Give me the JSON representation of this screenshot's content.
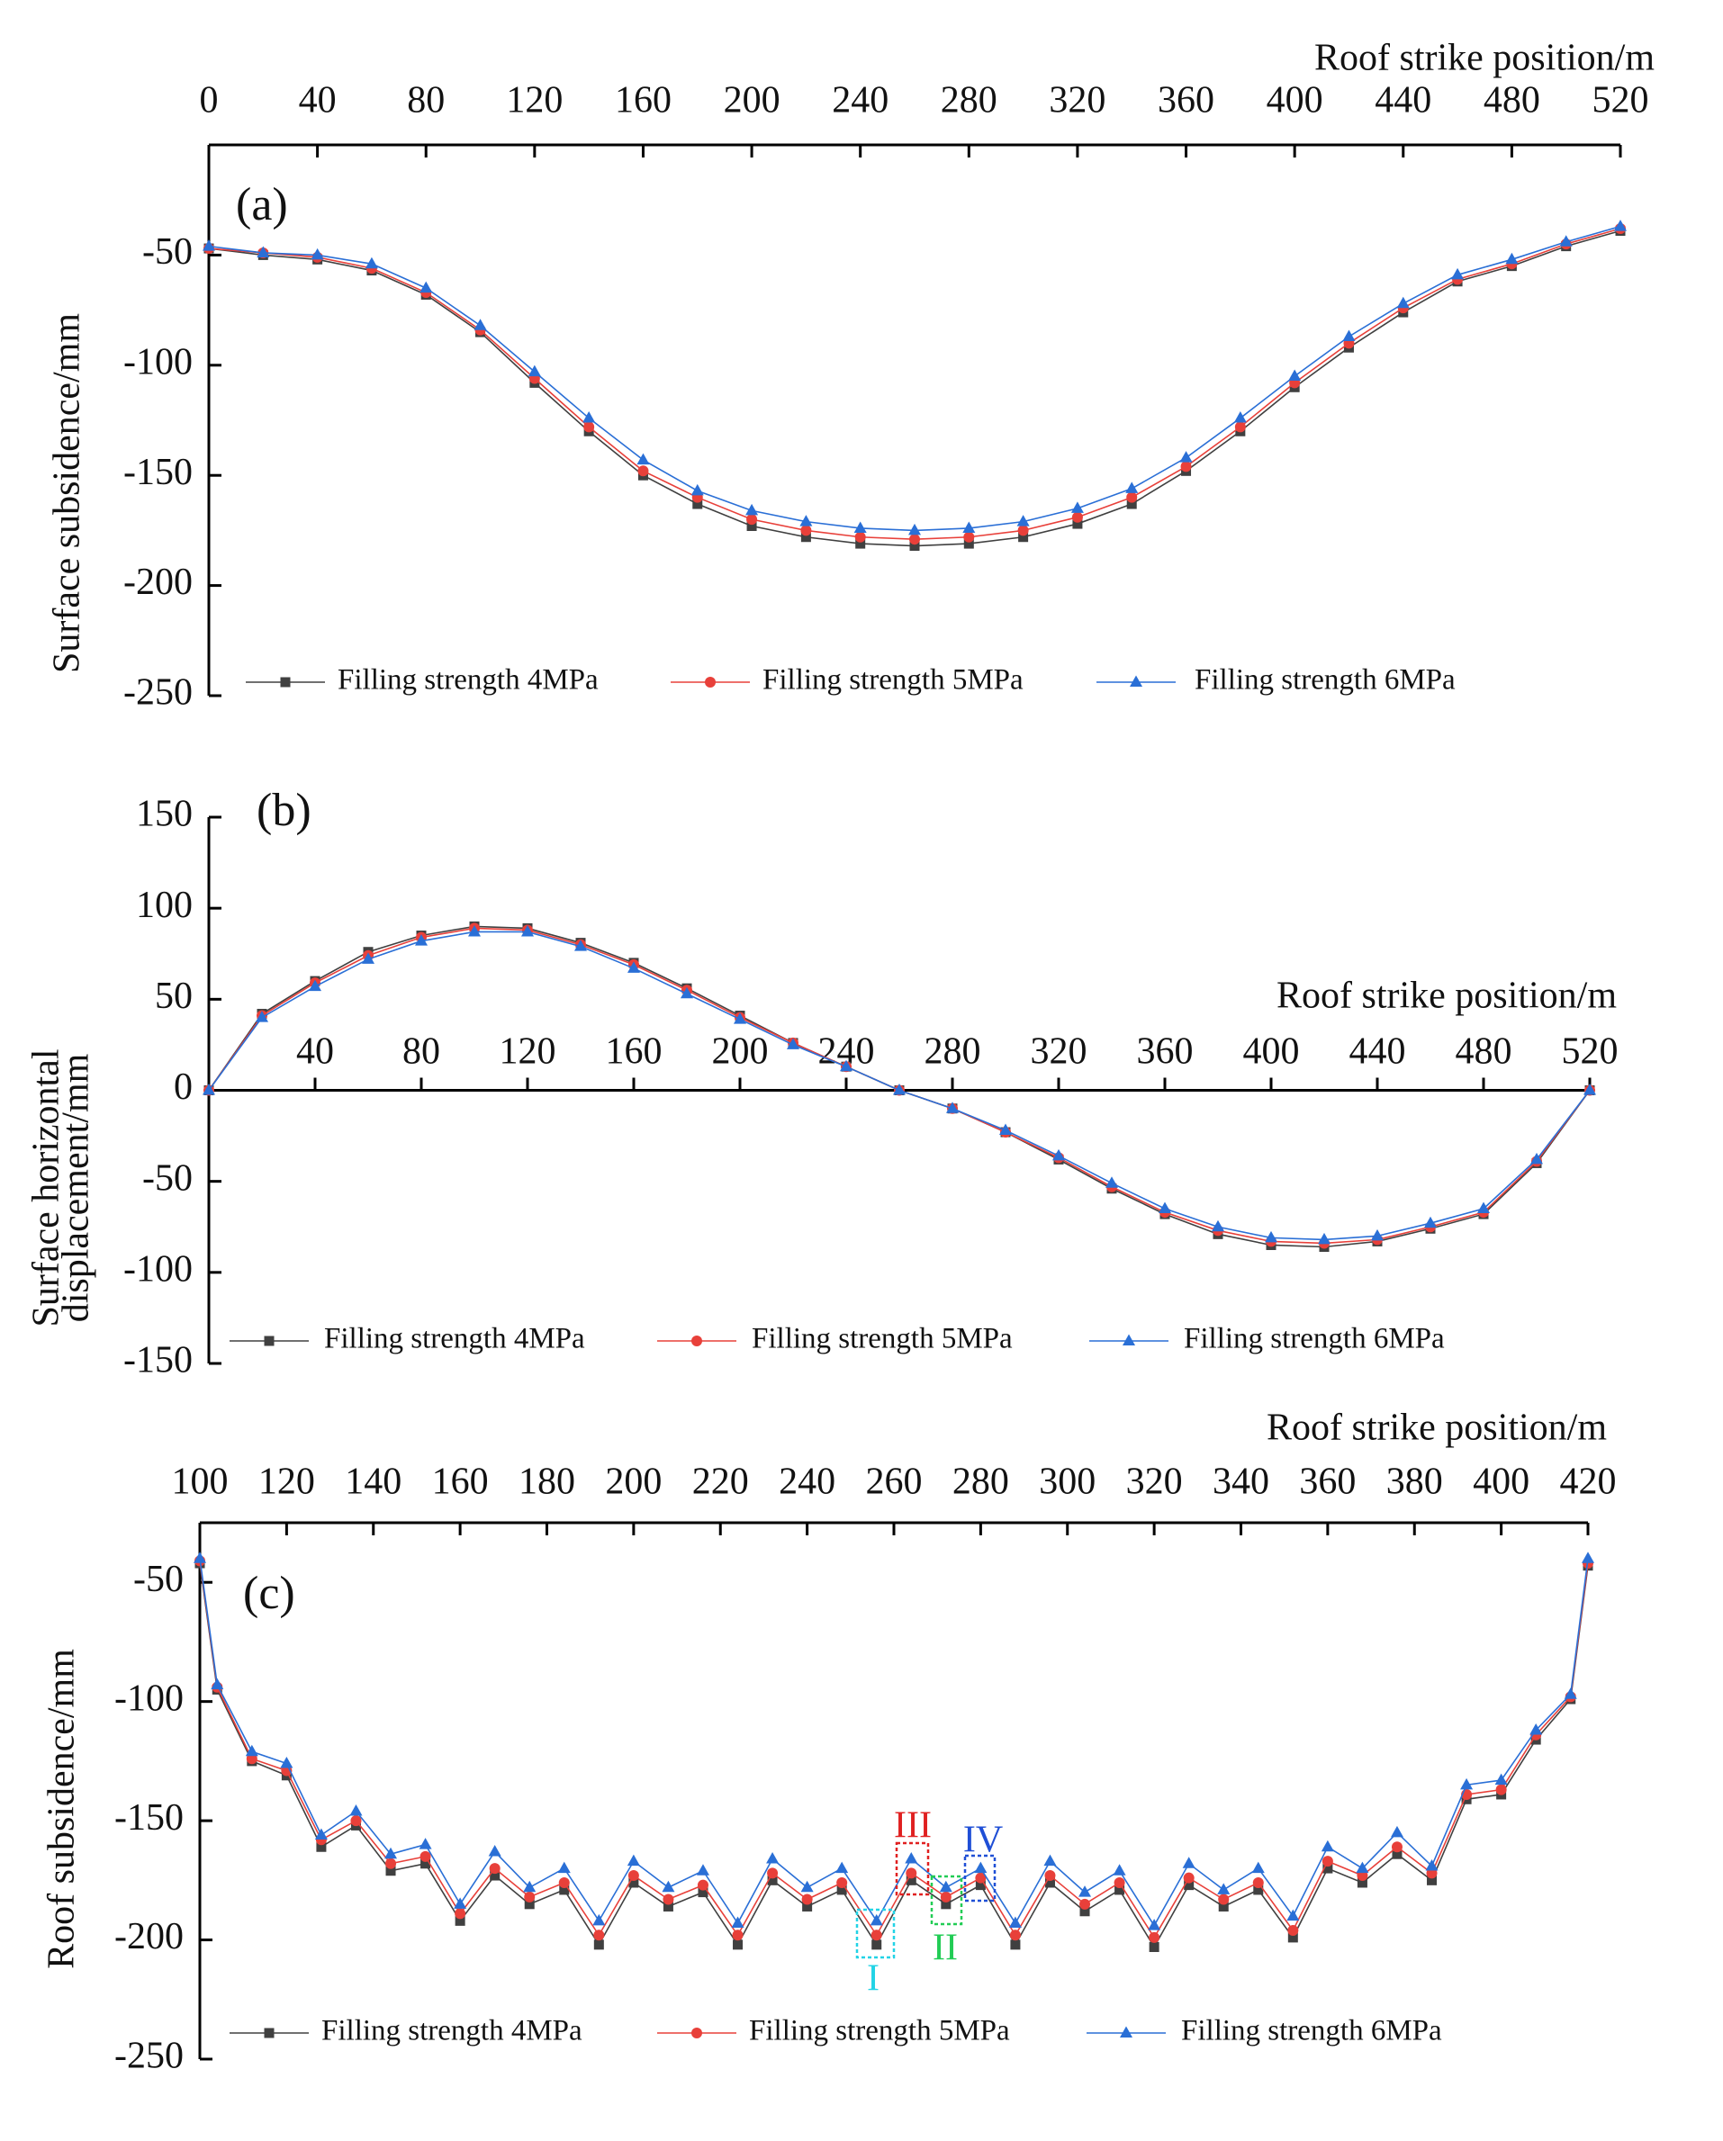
{
  "chart_data": [
    {
      "type": "line",
      "panel_label": "(a)",
      "x_label": "Roof strike position/m",
      "y_label": "Surface subsidence/mm",
      "x": [
        0,
        20,
        40,
        60,
        80,
        100,
        120,
        140,
        160,
        180,
        200,
        220,
        240,
        260,
        280,
        300,
        320,
        340,
        360,
        380,
        400,
        420,
        440,
        460,
        480,
        500,
        520
      ],
      "xlim": [
        0,
        520
      ],
      "xticks": [
        0,
        40,
        80,
        120,
        160,
        200,
        240,
        280,
        320,
        360,
        400,
        440,
        480,
        520
      ],
      "ylim": [
        -250,
        0
      ],
      "yticks": [
        -250,
        -200,
        -150,
        -100,
        -50
      ],
      "legend": "bottom",
      "series": [
        {
          "name": "Filling strength 4MPa",
          "color": "#404040",
          "marker": "square",
          "values": [
            -47,
            -50,
            -52,
            -57,
            -68,
            -85,
            -108,
            -130,
            -150,
            -163,
            -173,
            -178,
            -181,
            -182,
            -181,
            -178,
            -172,
            -163,
            -148,
            -130,
            -110,
            -92,
            -76,
            -62,
            -55,
            -46,
            -39
          ]
        },
        {
          "name": "Filling strength 5MPa",
          "color": "#e8403a",
          "marker": "circle",
          "values": [
            -47,
            -49,
            -51,
            -56,
            -67,
            -84,
            -106,
            -128,
            -148,
            -160,
            -170,
            -175,
            -178,
            -179,
            -178,
            -175,
            -169,
            -160,
            -146,
            -128,
            -108,
            -90,
            -74,
            -61,
            -54,
            -45,
            -38
          ]
        },
        {
          "name": "Filling strength 6MPa",
          "color": "#2a6fd6",
          "marker": "triangle",
          "values": [
            -46,
            -49,
            -50,
            -54,
            -65,
            -82,
            -103,
            -124,
            -143,
            -157,
            -166,
            -171,
            -174,
            -175,
            -174,
            -171,
            -165,
            -156,
            -142,
            -124,
            -105,
            -87,
            -72,
            -59,
            -52,
            -44,
            -37
          ]
        }
      ]
    },
    {
      "type": "line",
      "panel_label": "(b)",
      "x_label": "Roof strike position/m",
      "y_label": [
        "Surface horizontal",
        "displacement/mm"
      ],
      "x": [
        0,
        20,
        40,
        60,
        80,
        100,
        120,
        140,
        160,
        180,
        200,
        220,
        240,
        260,
        280,
        300,
        320,
        340,
        360,
        380,
        400,
        420,
        440,
        460,
        480,
        500,
        520
      ],
      "xlim": [
        0,
        520
      ],
      "xticks": [
        40,
        80,
        120,
        160,
        200,
        240,
        280,
        320,
        360,
        400,
        440,
        480,
        520
      ],
      "ylim": [
        -150,
        150
      ],
      "yticks": [
        -150,
        -100,
        -50,
        0,
        50,
        100,
        150
      ],
      "legend": "bottom",
      "series": [
        {
          "name": "Filling strength 4MPa",
          "color": "#404040",
          "marker": "square",
          "values": [
            0,
            42,
            60,
            76,
            85,
            90,
            89,
            81,
            70,
            56,
            41,
            26,
            13,
            0,
            -10,
            -23,
            -38,
            -54,
            -68,
            -79,
            -85,
            -86,
            -83,
            -76,
            -68,
            -40,
            0
          ]
        },
        {
          "name": "Filling strength 5MPa",
          "color": "#e8403a",
          "marker": "circle",
          "values": [
            0,
            41,
            59,
            74,
            84,
            89,
            88,
            80,
            69,
            55,
            40,
            26,
            13,
            0,
            -10,
            -23,
            -37,
            -53,
            -67,
            -77,
            -83,
            -84,
            -82,
            -75,
            -67,
            -39,
            0
          ]
        },
        {
          "name": "Filling strength 6MPa",
          "color": "#2a6fd6",
          "marker": "triangle",
          "values": [
            0,
            40,
            57,
            72,
            82,
            87,
            87,
            79,
            67,
            53,
            39,
            25,
            13,
            0,
            -10,
            -22,
            -36,
            -51,
            -65,
            -75,
            -81,
            -82,
            -80,
            -73,
            -65,
            -38,
            0
          ]
        }
      ]
    },
    {
      "type": "line",
      "panel_label": "(c)",
      "x_label": "Roof strike position/m",
      "y_label": "Roof subsidence/mm",
      "x": [
        100,
        104,
        112,
        120,
        128,
        136,
        144,
        152,
        160,
        168,
        176,
        184,
        192,
        200,
        208,
        216,
        224,
        232,
        240,
        248,
        256,
        264,
        272,
        280,
        288,
        296,
        304,
        312,
        320,
        328,
        336,
        344,
        352,
        360,
        368,
        376,
        384,
        392,
        400,
        408,
        416,
        420
      ],
      "xlim": [
        100,
        420
      ],
      "xticks": [
        100,
        120,
        140,
        160,
        180,
        200,
        220,
        240,
        260,
        280,
        300,
        320,
        340,
        360,
        380,
        400,
        420
      ],
      "ylim": [
        -250,
        -25
      ],
      "yticks": [
        -250,
        -200,
        -150,
        -100,
        -50
      ],
      "legend": "bottom",
      "annotations": [
        "I",
        "II",
        "III",
        "IV"
      ],
      "series": [
        {
          "name": "Filling strength 4MPa",
          "color": "#404040",
          "marker": "square",
          "values": [
            -42,
            -95,
            -125,
            -131,
            -161,
            -152,
            -171,
            -168,
            -192,
            -173,
            -185,
            -179,
            -202,
            -176,
            -186,
            -180,
            -202,
            -175,
            -186,
            -179,
            -202,
            -175,
            -185,
            -177,
            -202,
            -176,
            -188,
            -179,
            -203,
            -177,
            -186,
            -179,
            -199,
            -170,
            -176,
            -164,
            -175,
            -141,
            -139,
            -116,
            -99,
            -43
          ]
        },
        {
          "name": "Filling strength 5MPa",
          "color": "#e8403a",
          "marker": "circle",
          "values": [
            -41,
            -94,
            -124,
            -129,
            -158,
            -150,
            -168,
            -165,
            -189,
            -170,
            -182,
            -176,
            -198,
            -173,
            -183,
            -177,
            -198,
            -172,
            -183,
            -176,
            -198,
            -172,
            -182,
            -174,
            -198,
            -173,
            -185,
            -176,
            -199,
            -174,
            -183,
            -176,
            -196,
            -167,
            -173,
            -161,
            -172,
            -139,
            -137,
            -114,
            -98,
            -42
          ]
        },
        {
          "name": "Filling strength 6MPa",
          "color": "#2a6fd6",
          "marker": "triangle",
          "values": [
            -40,
            -93,
            -121,
            -126,
            -156,
            -146,
            -164,
            -160,
            -185,
            -163,
            -178,
            -170,
            -192,
            -167,
            -178,
            -171,
            -193,
            -166,
            -178,
            -170,
            -192,
            -166,
            -178,
            -170,
            -193,
            -167,
            -180,
            -171,
            -194,
            -168,
            -179,
            -170,
            -190,
            -161,
            -170,
            -155,
            -169,
            -135,
            -133,
            -112,
            -97,
            -40
          ]
        }
      ]
    }
  ]
}
